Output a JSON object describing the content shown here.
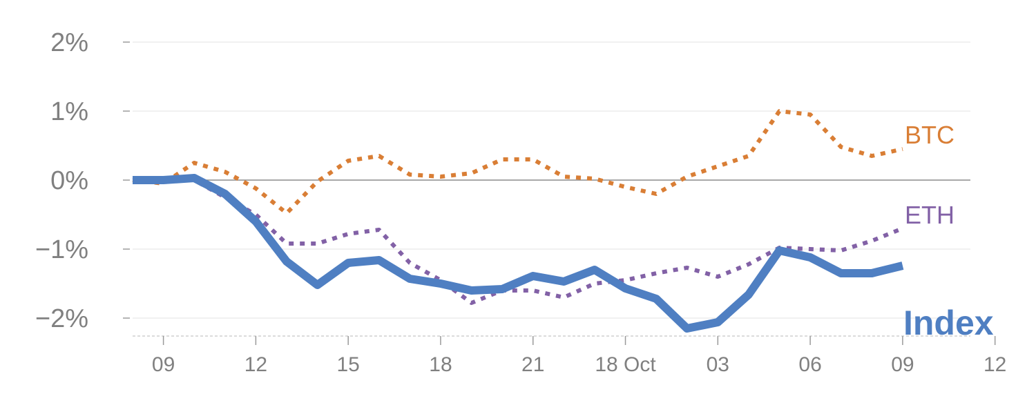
{
  "chart_data": {
    "type": "line",
    "title": "",
    "xlabel": "",
    "ylabel": "",
    "ylim": [
      -2.25,
      2.1
    ],
    "y_ticks": [
      {
        "value": 2,
        "label": "2%"
      },
      {
        "value": 1,
        "label": "1%"
      },
      {
        "value": 0,
        "label": "0%"
      },
      {
        "value": -1,
        "label": "−1%"
      },
      {
        "value": -2,
        "label": "−2%"
      }
    ],
    "x_range": [
      -1.0,
      26.2
    ],
    "x_ticks": [
      {
        "x": 0,
        "label": "09"
      },
      {
        "x": 3,
        "label": "12"
      },
      {
        "x": 6,
        "label": "15"
      },
      {
        "x": 9,
        "label": "18"
      },
      {
        "x": 12,
        "label": "21"
      },
      {
        "x": 15,
        "label": "18 Oct"
      },
      {
        "x": 18,
        "label": "03"
      },
      {
        "x": 21,
        "label": "06"
      },
      {
        "x": 24,
        "label": "09"
      },
      {
        "x": 27,
        "label": "12"
      }
    ],
    "x": [
      -1,
      0,
      1,
      2,
      3,
      4,
      5,
      6,
      7,
      8,
      9,
      10,
      11,
      12,
      13,
      14,
      15,
      16,
      17,
      18,
      19,
      20,
      21,
      22,
      23,
      24
    ],
    "series": [
      {
        "name": "BTC",
        "color": "#d97e35",
        "style": "dotted",
        "values": [
          0.0,
          -0.05,
          0.25,
          0.12,
          -0.12,
          -0.48,
          -0.02,
          0.28,
          0.35,
          0.08,
          0.05,
          0.1,
          0.3,
          0.3,
          0.05,
          0.02,
          -0.1,
          -0.2,
          0.05,
          0.2,
          0.35,
          1.0,
          0.95,
          0.48,
          0.35,
          0.45
        ]
      },
      {
        "name": "ETH",
        "color": "#8261a6",
        "style": "dotted",
        "values": [
          0.0,
          0.02,
          0.0,
          -0.25,
          -0.5,
          -0.92,
          -0.92,
          -0.78,
          -0.72,
          -1.2,
          -1.45,
          -1.78,
          -1.6,
          -1.6,
          -1.7,
          -1.5,
          -1.45,
          -1.35,
          -1.27,
          -1.4,
          -1.22,
          -0.98,
          -1.0,
          -1.02,
          -0.88,
          -0.7
        ]
      },
      {
        "name": "Index",
        "color": "#4f7fc2",
        "style": "solid",
        "values": [
          0.0,
          0.0,
          0.03,
          -0.2,
          -0.6,
          -1.18,
          -1.52,
          -1.2,
          -1.16,
          -1.43,
          -1.5,
          -1.6,
          -1.58,
          -1.39,
          -1.47,
          -1.3,
          -1.57,
          -1.72,
          -2.15,
          -2.06,
          -1.66,
          -1.02,
          -1.12,
          -1.35,
          -1.35,
          -1.24
        ]
      }
    ]
  }
}
